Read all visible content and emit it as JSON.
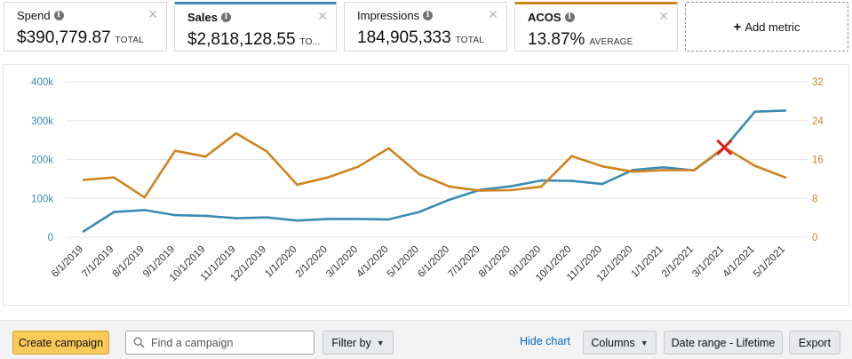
{
  "metrics": [
    {
      "label": "Spend",
      "value": "$390,779.87",
      "unit": "TOTAL"
    },
    {
      "label": "Sales",
      "value": "$2,818,128.55",
      "unit": "TO..."
    },
    {
      "label": "Impressions",
      "value": "184,905,333",
      "unit": "TOTAL"
    },
    {
      "label": "ACOS",
      "value": "13.87%",
      "unit": "AVERAGE"
    }
  ],
  "add_metric_label": "Add metric",
  "colors": {
    "sales": "#3a8cb3",
    "acos": "#d1831c",
    "marker": "#d9231e",
    "primary_button": "#f7ca59"
  },
  "chart_data": {
    "type": "line",
    "x": [
      "6/1/2019",
      "7/1/2019",
      "8/1/2019",
      "9/1/2019",
      "10/1/2019",
      "11/1/2019",
      "12/1/2019",
      "1/1/2020",
      "2/1/2020",
      "3/1/2020",
      "4/1/2020",
      "5/1/2020",
      "6/1/2020",
      "7/1/2020",
      "8/1/2020",
      "9/1/2020",
      "10/1/2020",
      "11/1/2020",
      "12/1/2020",
      "1/1/2021",
      "2/1/2021",
      "3/1/2021",
      "4/1/2021",
      "5/1/2021"
    ],
    "series": [
      {
        "axis": "left",
        "color": "#3a8cb3",
        "values": [
          15000,
          65000,
          70000,
          57000,
          55000,
          49000,
          51000,
          43000,
          47000,
          47000,
          46000,
          65000,
          97000,
          122000,
          131000,
          146000,
          145000,
          137000,
          173000,
          180000,
          172000,
          230000,
          323000,
          326000
        ]
      },
      {
        "axis": "right",
        "color": "#d1831c",
        "values": [
          11.8,
          12.3,
          8.2,
          17.8,
          16.6,
          21.4,
          17.7,
          10.8,
          12.3,
          14.5,
          18.3,
          13.0,
          10.4,
          9.6,
          9.7,
          10.4,
          16.7,
          14.6,
          13.5,
          13.8,
          13.8,
          18.5,
          14.7,
          12.3
        ]
      }
    ],
    "y_left": {
      "ticks": [
        "0",
        "100k",
        "200k",
        "300k",
        "400k"
      ],
      "ylim": [
        0,
        400000
      ]
    },
    "y_right": {
      "ticks": [
        "0",
        "8",
        "16",
        "24",
        "32"
      ],
      "ylim": [
        0,
        32
      ]
    },
    "annotations": [
      {
        "type": "x-marker",
        "x": "3/1/2021",
        "value": 18.5,
        "axis": "right"
      }
    ]
  },
  "toolbar": {
    "create_campaign": "Create campaign",
    "search_placeholder": "Find a campaign",
    "filter_by": "Filter by",
    "hide_chart": "Hide chart",
    "columns": "Columns",
    "date_range": "Date range - Lifetime",
    "export": "Export"
  }
}
